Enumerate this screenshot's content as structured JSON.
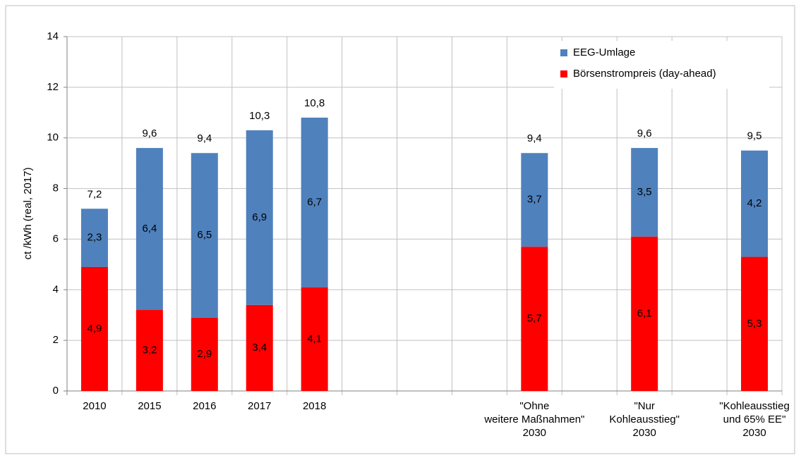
{
  "chart_data": {
    "type": "stacked-bar",
    "y_label": "ct /kWh (real, 2017)",
    "categories": [
      "2010",
      "2015",
      "2016",
      "2017",
      "2018",
      null,
      null,
      null,
      "\"Ohne\nweitere Maßnahmen\"\n2030",
      null,
      "\"Nur\nKohleausstieg\"\n2030",
      null,
      "\"Kohleausstieg\nund 65% EE\"\n2030"
    ],
    "series": [
      {
        "name": "Börsenstrompreis (day-ahead)",
        "color": "#ff0000",
        "values": [
          4.9,
          3.2,
          2.9,
          3.4,
          4.1,
          null,
          null,
          null,
          5.7,
          null,
          6.1,
          null,
          5.3
        ],
        "value_labels": [
          "4,9",
          "3,2",
          "2,9",
          "3,4",
          "4,1",
          null,
          null,
          null,
          "5,7",
          null,
          "6,1",
          null,
          "5,3"
        ]
      },
      {
        "name": "EEG-Umlage",
        "color": "#4f81bd",
        "values": [
          2.3,
          6.4,
          6.5,
          6.9,
          6.7,
          null,
          null,
          null,
          3.7,
          null,
          3.5,
          null,
          4.2
        ],
        "value_labels": [
          "2,3",
          "6,4",
          "6,5",
          "6,9",
          "6,7",
          null,
          null,
          null,
          "3,7",
          null,
          "3,5",
          null,
          "4,2"
        ]
      }
    ],
    "totals": [
      7.2,
      9.6,
      9.4,
      10.3,
      10.8,
      null,
      null,
      null,
      9.4,
      null,
      9.6,
      null,
      9.5
    ],
    "total_labels": [
      "7,2",
      "9,6",
      "9,4",
      "10,3",
      "10,8",
      null,
      null,
      null,
      "9,4",
      null,
      "9,6",
      null,
      "9,5"
    ],
    "ylim": [
      0,
      14
    ],
    "yticks": [
      0,
      2,
      4,
      6,
      8,
      10,
      12,
      14
    ],
    "grid": true,
    "legend": "top-right"
  }
}
